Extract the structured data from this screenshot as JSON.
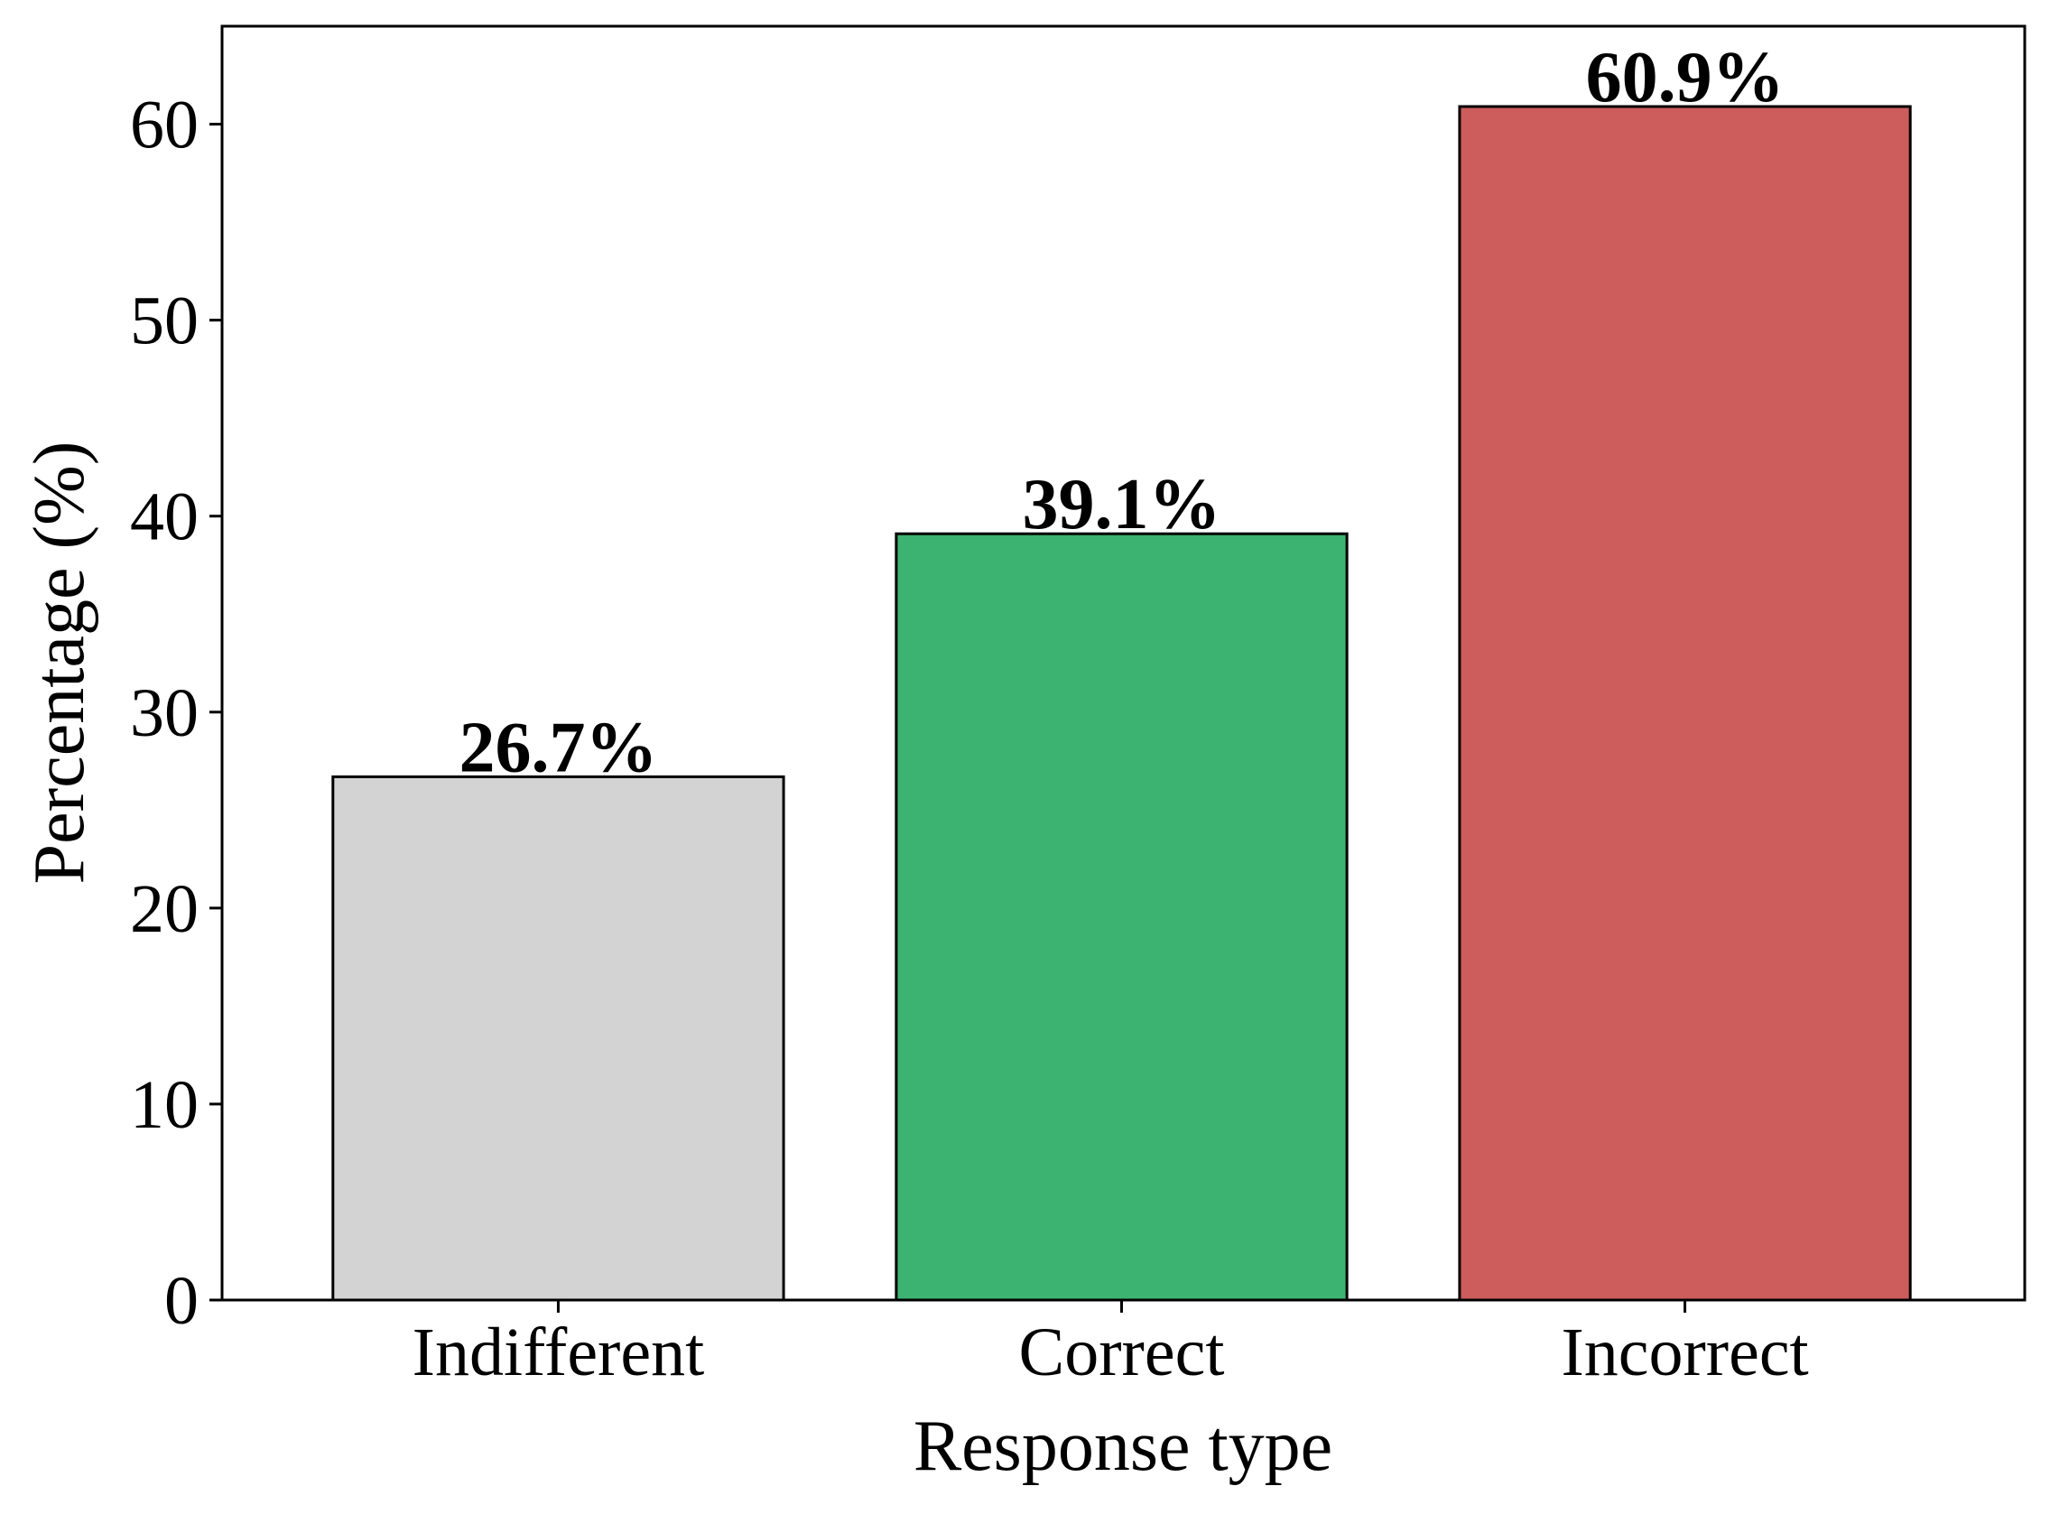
{
  "chart_data": {
    "type": "bar",
    "categories": [
      "Indifferent",
      "Correct",
      "Incorrect"
    ],
    "values": [
      26.7,
      39.1,
      60.9
    ],
    "data_labels": [
      "26.7%",
      "39.1%",
      "60.9%"
    ],
    "colors": [
      "#d3d3d3",
      "#3cb371",
      "#cd5c5c"
    ],
    "edge_color": "#000000",
    "title": "",
    "xlabel": "Response type",
    "ylabel": "Percentage (%)",
    "ylim": [
      0,
      65
    ],
    "yticks": [
      0,
      10,
      20,
      30,
      40,
      50,
      60
    ],
    "grid": false,
    "legend": "none"
  }
}
